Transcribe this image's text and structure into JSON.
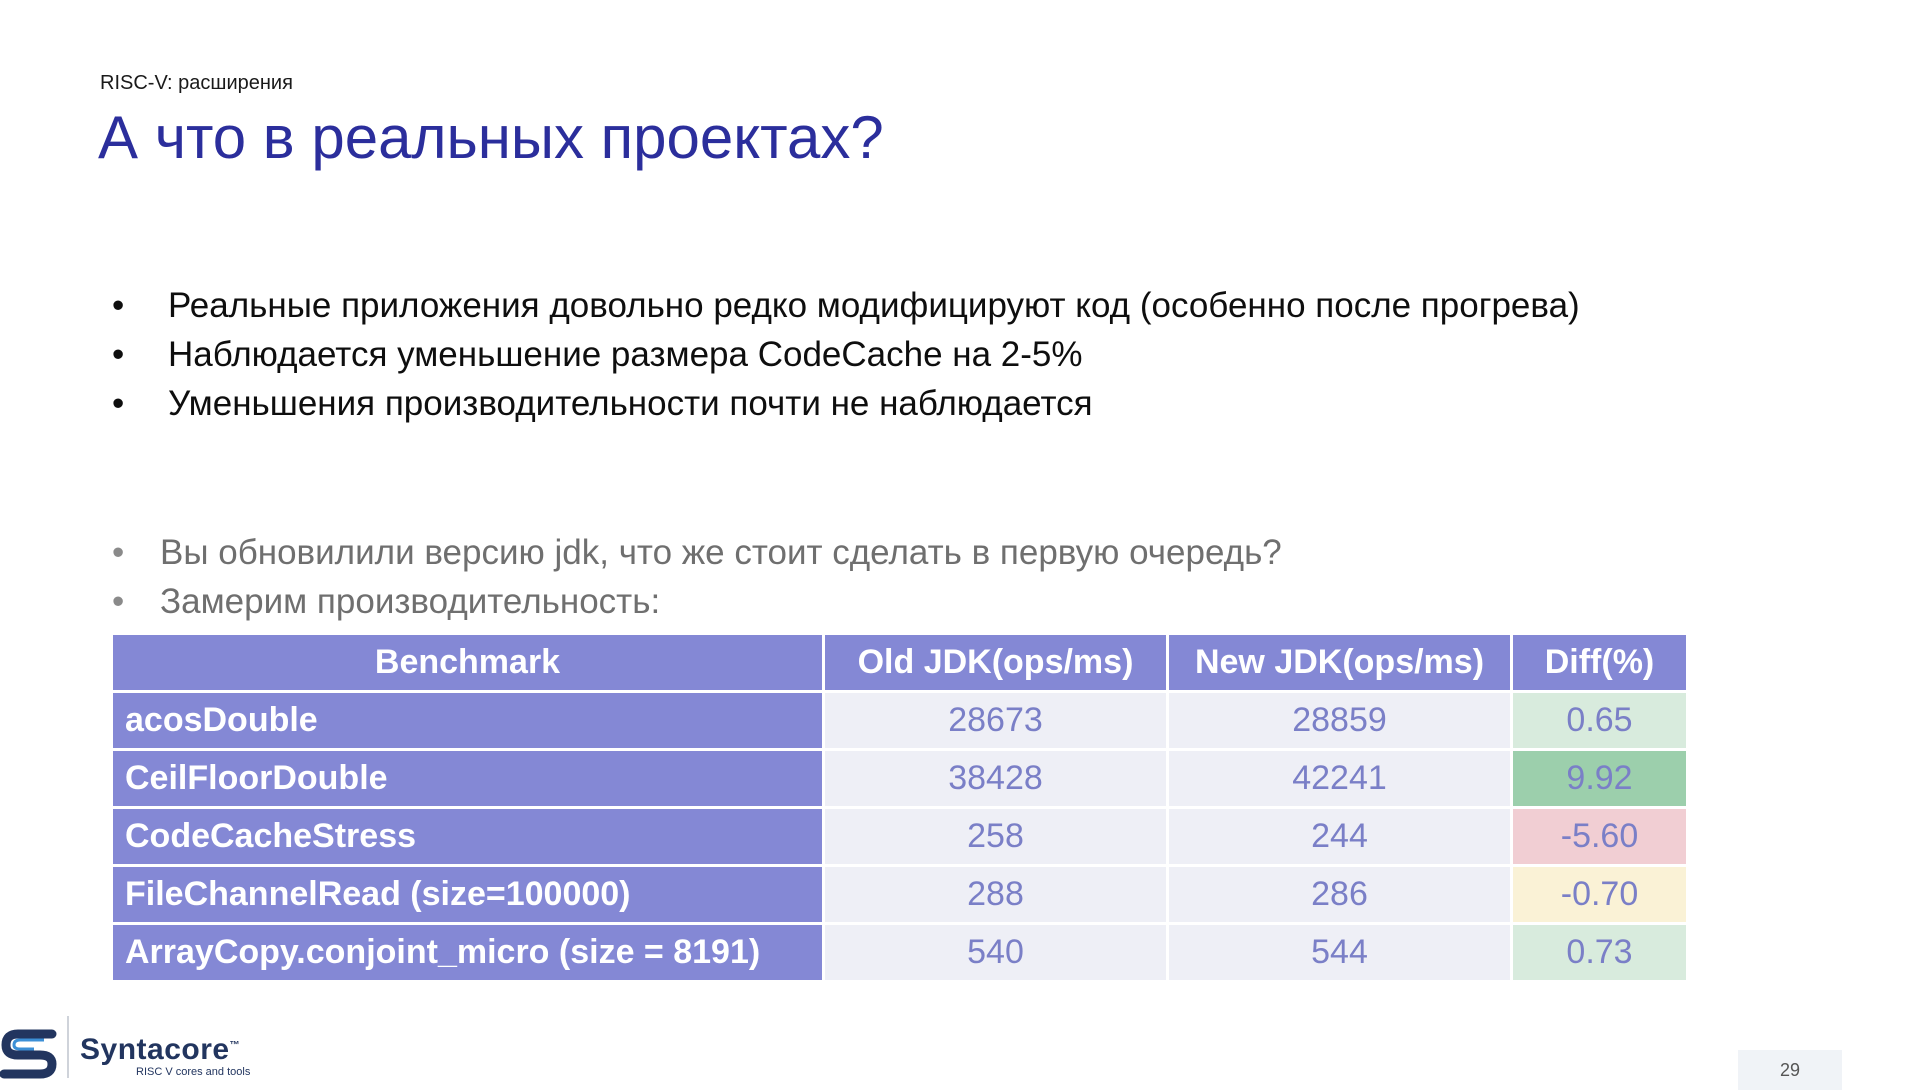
{
  "header": {
    "section": "RISC-V: расширения",
    "title": "А что в реальных проектах?"
  },
  "bullets_main": [
    "Реальные приложения довольно редко модифицируют код (особенно после прогрева)",
    "Наблюдается уменьшение размера CodeCache на 2-5%",
    "Уменьшения производительности почти не наблюдается"
  ],
  "bullets_sub": [
    "Вы обновилили версию jdk, что же стоит сделать в первую очередь?",
    "Замерим производительность:"
  ],
  "table": {
    "headers": [
      "Benchmark",
      "Old JDK(ops/ms)",
      "New JDK(ops/ms)",
      "Diff(%)"
    ],
    "rows": [
      {
        "name": "acosDouble",
        "old": "28673",
        "new": "28859",
        "diff": "0.65",
        "diff_color": "#d8ebdd"
      },
      {
        "name": "CeilFloorDouble",
        "old": "38428",
        "new": "42241",
        "diff": "9.92",
        "diff_color": "#9ccfac"
      },
      {
        "name": "CodeCacheStress",
        "old": "258",
        "new": "244",
        "diff": "-5.60",
        "diff_color": "#f1ced3"
      },
      {
        "name": "FileChannelRead (size=100000)",
        "old": "288",
        "new": "286",
        "diff": "-0.70",
        "diff_color": "#faf2d6"
      },
      {
        "name": "ArrayCopy.conjoint_micro (size = 8191)",
        "old": "540",
        "new": "544",
        "diff": "0.73",
        "diff_color": "#d8ebdd"
      }
    ]
  },
  "footer": {
    "logo_text": "Syntacore",
    "logo_tm": "™",
    "logo_tagline": "RISC V cores and tools",
    "page_number": "29"
  },
  "colors": {
    "title": "#2b2e9c",
    "table_header": "#8488d5",
    "table_value": "#7a7fc7",
    "logo": "#22355f"
  },
  "icons": [
    "syntacore-logo-icon"
  ]
}
